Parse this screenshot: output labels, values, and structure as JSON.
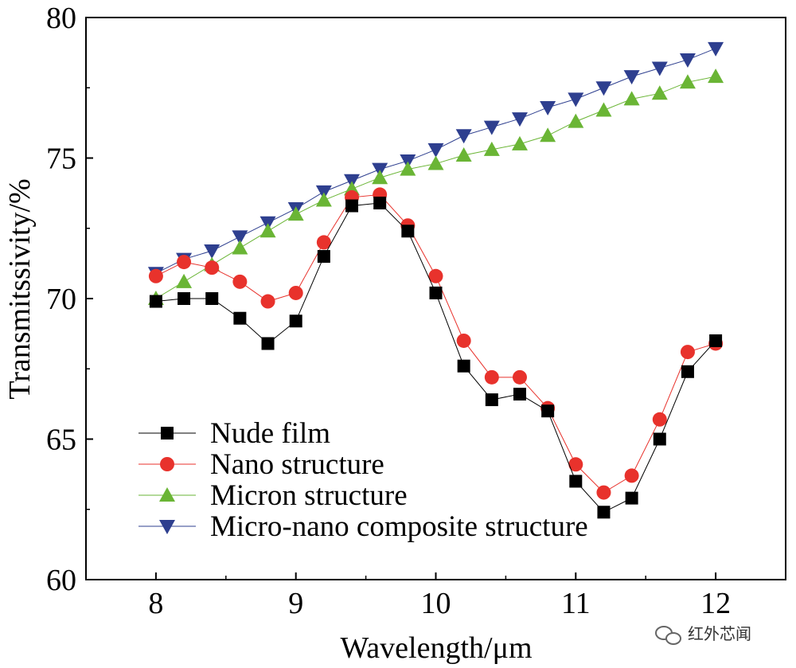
{
  "chart_data": {
    "type": "line",
    "title": "",
    "xlabel": "Wavelength/μm",
    "ylabel": "Transmitssivity/%",
    "xlim": [
      7.5,
      12.5
    ],
    "ylim": [
      60,
      80
    ],
    "xticks": [
      8,
      9,
      10,
      11,
      12
    ],
    "yticks": [
      60,
      65,
      70,
      75,
      80
    ],
    "legend_position": "bottom-left",
    "x": [
      8.0,
      8.2,
      8.4,
      8.6,
      8.8,
      9.0,
      9.2,
      9.4,
      9.6,
      9.8,
      10.0,
      10.2,
      10.4,
      10.6,
      10.8,
      11.0,
      11.2,
      11.4,
      11.6,
      11.8,
      12.0
    ],
    "series": [
      {
        "name": "Nude film",
        "marker": "square",
        "color": "#000000",
        "marker_color": "#000000",
        "values": [
          69.9,
          70.0,
          70.0,
          69.3,
          68.4,
          69.2,
          71.5,
          73.3,
          73.4,
          72.4,
          70.2,
          67.6,
          66.4,
          66.6,
          66.0,
          63.5,
          62.4,
          62.9,
          65.0,
          67.4,
          68.5
        ]
      },
      {
        "name": "Nano structure",
        "marker": "circle",
        "color": "#e8322c",
        "marker_color": "#e8322c",
        "values": [
          70.8,
          71.3,
          71.1,
          70.6,
          69.9,
          70.2,
          72.0,
          73.6,
          73.7,
          72.6,
          70.8,
          68.5,
          67.2,
          67.2,
          66.1,
          64.1,
          63.1,
          63.7,
          65.7,
          68.1,
          68.4
        ]
      },
      {
        "name": "Micron structure",
        "marker": "triangle-up",
        "color": "#6ab535",
        "marker_color": "#6ab535",
        "values": [
          70.0,
          70.6,
          71.2,
          71.8,
          72.4,
          73.0,
          73.5,
          73.9,
          74.3,
          74.6,
          74.8,
          75.1,
          75.3,
          75.5,
          75.8,
          76.3,
          76.7,
          77.1,
          77.3,
          77.7,
          77.9
        ]
      },
      {
        "name": "Micro-nano composite structure",
        "marker": "triangle-down",
        "color": "#2e3f8f",
        "marker_color": "#2e3f8f",
        "values": [
          70.9,
          71.4,
          71.7,
          72.2,
          72.7,
          73.2,
          73.8,
          74.2,
          74.6,
          74.9,
          75.3,
          75.8,
          76.1,
          76.4,
          76.8,
          77.1,
          77.5,
          77.9,
          78.2,
          78.5,
          78.9
        ]
      }
    ]
  },
  "watermark": {
    "text": "红外芯闻",
    "icon": "wechat-icon"
  }
}
